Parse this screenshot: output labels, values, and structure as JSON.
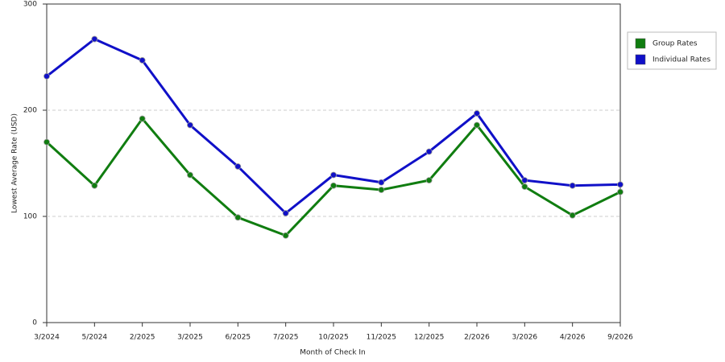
{
  "chart_data": {
    "type": "line",
    "x_label": "Month of Check In",
    "y_label": "Lowest Average Rate (USD)",
    "categories": [
      "3/2024",
      "5/2024",
      "2/2025",
      "3/2025",
      "6/2025",
      "7/2025",
      "10/2025",
      "11/2025",
      "12/2025",
      "2/2026",
      "3/2026",
      "4/2026",
      "9/2026"
    ],
    "series": [
      {
        "name": "Group Rates",
        "color": "#107d10",
        "values": [
          170,
          129,
          192,
          139,
          99,
          82,
          129,
          125,
          134,
          186,
          128,
          101,
          123
        ]
      },
      {
        "name": "Individual Rates",
        "color": "#1010c8",
        "values": [
          232,
          267,
          247,
          186,
          147,
          103,
          139,
          132,
          161,
          197,
          134,
          129,
          130
        ]
      }
    ],
    "ylim": [
      0,
      300
    ],
    "yticks": [
      0,
      100,
      200,
      300
    ],
    "grid": true,
    "legend": "right"
  }
}
